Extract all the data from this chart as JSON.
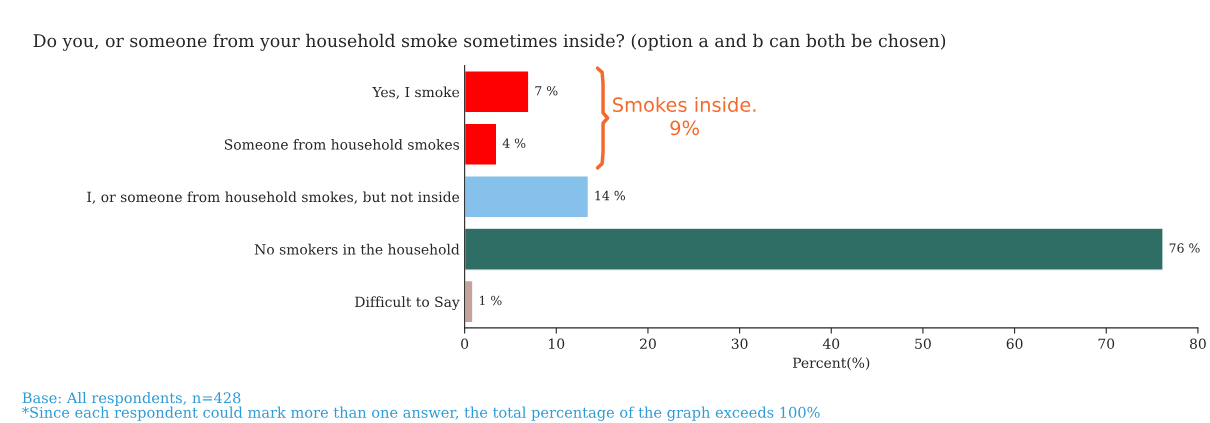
{
  "chart_data": {
    "type": "bar",
    "orientation": "horizontal",
    "title": "Do you, or someone from your household smoke sometimes inside? (option a and b can both be chosen)",
    "xlabel": "Percent(%)",
    "categories": [
      "Yes, I smoke",
      "Someone from household smokes",
      "I, or someone from household smokes, but not inside",
      "No smokers in the household",
      "Difficult to Say"
    ],
    "values": [
      7.0,
      3.5,
      13.5,
      76.2,
      0.9
    ],
    "value_labels": [
      "7 %",
      "4 %",
      "14 %",
      "76 %",
      "1 %"
    ],
    "colors": [
      "#ff0000",
      "#ff0000",
      "#85c1ea",
      "#2e6e65",
      "#c4a49a"
    ],
    "xlim": [
      0,
      80
    ],
    "xticks": [
      0,
      10,
      20,
      30,
      40,
      50,
      60,
      70,
      80
    ],
    "grid": false,
    "legend": false,
    "annotations": [
      "Smokes inside.\n9%",
      "Base: All respondents, n=428",
      "*Since each respondent could mark more than one answer, the total percentage of the graph exceeds 100%"
    ]
  }
}
